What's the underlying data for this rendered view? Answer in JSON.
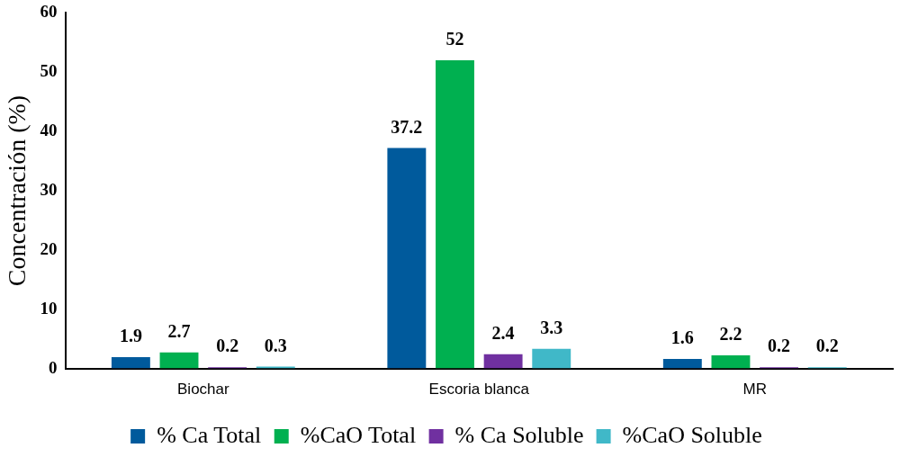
{
  "chart_data": {
    "type": "bar",
    "ylabel": "Concentración (%)",
    "categories": [
      "Biochar",
      "Escoria blanca",
      "MR"
    ],
    "series": [
      {
        "name": "% Ca Total",
        "color": "#005a9c",
        "values": [
          1.9,
          37.2,
          1.6
        ]
      },
      {
        "name": "%CaO Total",
        "color": "#00b050",
        "values": [
          2.7,
          52,
          2.2
        ]
      },
      {
        "name": "% Ca Soluble",
        "color": "#7030a0",
        "values": [
          0.2,
          2.4,
          0.2
        ]
      },
      {
        "name": "%CaO Soluble",
        "color": "#40b8c8",
        "values": [
          0.3,
          3.3,
          0.2
        ]
      }
    ],
    "ylim": [
      0,
      60
    ],
    "yticks": [
      0,
      10,
      20,
      30,
      40,
      50,
      60
    ],
    "grid": false,
    "legend": "bottom",
    "data_labels": true
  }
}
